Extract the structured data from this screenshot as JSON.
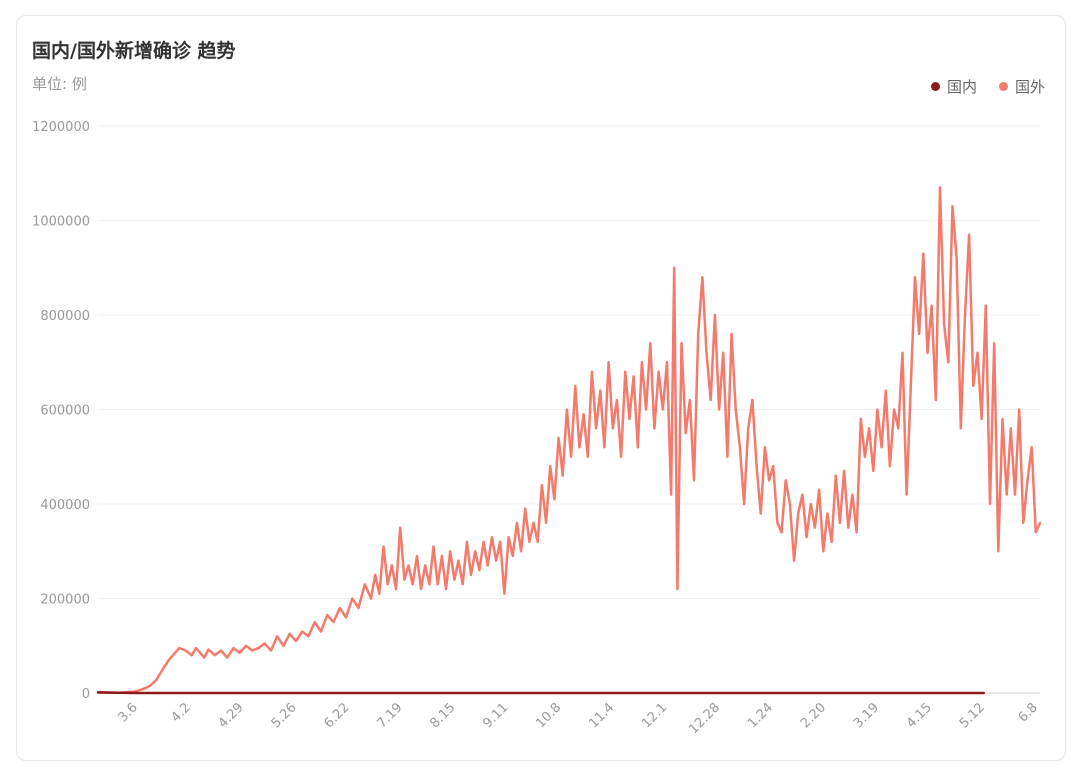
{
  "chart_data": {
    "type": "line",
    "title": "国内/国外新增确诊 趋势",
    "unit_label": "单位: 例",
    "legend_position": "top-right",
    "ylim": [
      0,
      1200000
    ],
    "y_ticks": [
      "1200000",
      "1000000",
      "800000",
      "600000",
      "400000",
      "200000",
      "0"
    ],
    "x_tick_labels": [
      "3.6",
      "4.2",
      "4.29",
      "5.26",
      "6.22",
      "7.19",
      "8.15",
      "9.11",
      "10.8",
      "11.4",
      "12.1",
      "12.28",
      "1.24",
      "2.20",
      "3.19",
      "4.15",
      "5.12",
      "6.8"
    ],
    "series": [
      {
        "name": "国内",
        "color": "#8b1a1a",
        "keypoints": [
          [
            0,
            1000
          ],
          [
            20,
            500
          ],
          [
            40,
            100
          ],
          [
            120,
            50
          ],
          [
            300,
            30
          ],
          [
            500,
            20
          ],
          [
            700,
            40
          ],
          [
            800,
            30
          ],
          [
            838,
            60
          ],
          [
            850,
            40
          ]
        ]
      },
      {
        "name": "国外",
        "color": "#f47a6b",
        "keypoints": [
          [
            0,
            2000
          ],
          [
            20,
            500
          ],
          [
            35,
            3000
          ],
          [
            43,
            8000
          ],
          [
            50,
            15000
          ],
          [
            56,
            28000
          ],
          [
            62,
            50000
          ],
          [
            68,
            70000
          ],
          [
            74,
            85000
          ],
          [
            78,
            95000
          ],
          [
            84,
            90000
          ],
          [
            90,
            80000
          ],
          [
            94,
            95000
          ],
          [
            98,
            85000
          ],
          [
            102,
            75000
          ],
          [
            106,
            92000
          ],
          [
            112,
            80000
          ],
          [
            118,
            90000
          ],
          [
            124,
            75000
          ],
          [
            130,
            95000
          ],
          [
            136,
            85000
          ],
          [
            142,
            100000
          ],
          [
            148,
            90000
          ],
          [
            154,
            95000
          ],
          [
            160,
            105000
          ],
          [
            166,
            90000
          ],
          [
            172,
            120000
          ],
          [
            178,
            100000
          ],
          [
            184,
            125000
          ],
          [
            190,
            110000
          ],
          [
            196,
            130000
          ],
          [
            202,
            120000
          ],
          [
            208,
            150000
          ],
          [
            214,
            130000
          ],
          [
            220,
            165000
          ],
          [
            226,
            150000
          ],
          [
            232,
            180000
          ],
          [
            238,
            160000
          ],
          [
            244,
            200000
          ],
          [
            250,
            180000
          ],
          [
            256,
            230000
          ],
          [
            262,
            200000
          ],
          [
            266,
            250000
          ],
          [
            270,
            210000
          ],
          [
            274,
            310000
          ],
          [
            278,
            230000
          ],
          [
            282,
            270000
          ],
          [
            286,
            220000
          ],
          [
            290,
            350000
          ],
          [
            294,
            240000
          ],
          [
            298,
            270000
          ],
          [
            302,
            230000
          ],
          [
            306,
            290000
          ],
          [
            310,
            220000
          ],
          [
            314,
            270000
          ],
          [
            318,
            230000
          ],
          [
            322,
            310000
          ],
          [
            326,
            230000
          ],
          [
            330,
            290000
          ],
          [
            334,
            220000
          ],
          [
            338,
            300000
          ],
          [
            342,
            240000
          ],
          [
            346,
            280000
          ],
          [
            350,
            230000
          ],
          [
            354,
            320000
          ],
          [
            358,
            250000
          ],
          [
            362,
            300000
          ],
          [
            366,
            260000
          ],
          [
            370,
            320000
          ],
          [
            374,
            270000
          ],
          [
            378,
            330000
          ],
          [
            382,
            280000
          ],
          [
            386,
            320000
          ],
          [
            390,
            210000
          ],
          [
            394,
            330000
          ],
          [
            398,
            290000
          ],
          [
            402,
            360000
          ],
          [
            406,
            300000
          ],
          [
            410,
            390000
          ],
          [
            414,
            320000
          ],
          [
            418,
            360000
          ],
          [
            422,
            320000
          ],
          [
            426,
            440000
          ],
          [
            430,
            360000
          ],
          [
            434,
            480000
          ],
          [
            438,
            410000
          ],
          [
            442,
            540000
          ],
          [
            446,
            460000
          ],
          [
            450,
            600000
          ],
          [
            454,
            500000
          ],
          [
            458,
            650000
          ],
          [
            462,
            520000
          ],
          [
            466,
            590000
          ],
          [
            470,
            500000
          ],
          [
            474,
            680000
          ],
          [
            478,
            560000
          ],
          [
            482,
            640000
          ],
          [
            486,
            520000
          ],
          [
            490,
            700000
          ],
          [
            494,
            560000
          ],
          [
            498,
            620000
          ],
          [
            502,
            500000
          ],
          [
            506,
            680000
          ],
          [
            510,
            580000
          ],
          [
            514,
            670000
          ],
          [
            518,
            520000
          ],
          [
            522,
            700000
          ],
          [
            526,
            600000
          ],
          [
            530,
            740000
          ],
          [
            534,
            560000
          ],
          [
            538,
            680000
          ],
          [
            542,
            600000
          ],
          [
            546,
            700000
          ],
          [
            550,
            420000
          ],
          [
            553,
            900000
          ],
          [
            556,
            220000
          ],
          [
            560,
            740000
          ],
          [
            564,
            550000
          ],
          [
            568,
            620000
          ],
          [
            572,
            450000
          ],
          [
            576,
            760000
          ],
          [
            580,
            880000
          ],
          [
            584,
            720000
          ],
          [
            588,
            620000
          ],
          [
            592,
            800000
          ],
          [
            596,
            600000
          ],
          [
            600,
            720000
          ],
          [
            604,
            500000
          ],
          [
            608,
            760000
          ],
          [
            612,
            600000
          ],
          [
            616,
            520000
          ],
          [
            620,
            400000
          ],
          [
            624,
            560000
          ],
          [
            628,
            620000
          ],
          [
            632,
            480000
          ],
          [
            636,
            380000
          ],
          [
            640,
            520000
          ],
          [
            644,
            450000
          ],
          [
            648,
            480000
          ],
          [
            652,
            360000
          ],
          [
            656,
            340000
          ],
          [
            660,
            450000
          ],
          [
            664,
            400000
          ],
          [
            668,
            280000
          ],
          [
            672,
            380000
          ],
          [
            676,
            420000
          ],
          [
            680,
            330000
          ],
          [
            684,
            400000
          ],
          [
            688,
            350000
          ],
          [
            692,
            430000
          ],
          [
            696,
            300000
          ],
          [
            700,
            380000
          ],
          [
            704,
            320000
          ],
          [
            708,
            460000
          ],
          [
            712,
            360000
          ],
          [
            716,
            470000
          ],
          [
            720,
            350000
          ],
          [
            724,
            420000
          ],
          [
            728,
            340000
          ],
          [
            732,
            580000
          ],
          [
            736,
            500000
          ],
          [
            740,
            560000
          ],
          [
            744,
            470000
          ],
          [
            748,
            600000
          ],
          [
            752,
            520000
          ],
          [
            756,
            640000
          ],
          [
            760,
            480000
          ],
          [
            764,
            600000
          ],
          [
            768,
            560000
          ],
          [
            772,
            720000
          ],
          [
            776,
            420000
          ],
          [
            780,
            650000
          ],
          [
            784,
            880000
          ],
          [
            788,
            760000
          ],
          [
            792,
            930000
          ],
          [
            796,
            720000
          ],
          [
            800,
            820000
          ],
          [
            804,
            620000
          ],
          [
            808,
            1070000
          ],
          [
            812,
            780000
          ],
          [
            816,
            700000
          ],
          [
            820,
            1030000
          ],
          [
            824,
            920000
          ],
          [
            828,
            560000
          ],
          [
            832,
            800000
          ],
          [
            836,
            970000
          ],
          [
            840,
            650000
          ],
          [
            844,
            720000
          ],
          [
            848,
            580000
          ],
          [
            852,
            820000
          ],
          [
            856,
            400000
          ],
          [
            860,
            740000
          ],
          [
            864,
            300000
          ],
          [
            868,
            580000
          ],
          [
            872,
            420000
          ],
          [
            876,
            560000
          ],
          [
            880,
            420000
          ],
          [
            884,
            600000
          ],
          [
            888,
            360000
          ],
          [
            892,
            450000
          ],
          [
            896,
            520000
          ],
          [
            900,
            340000
          ],
          [
            904,
            360000
          ]
        ]
      }
    ]
  }
}
